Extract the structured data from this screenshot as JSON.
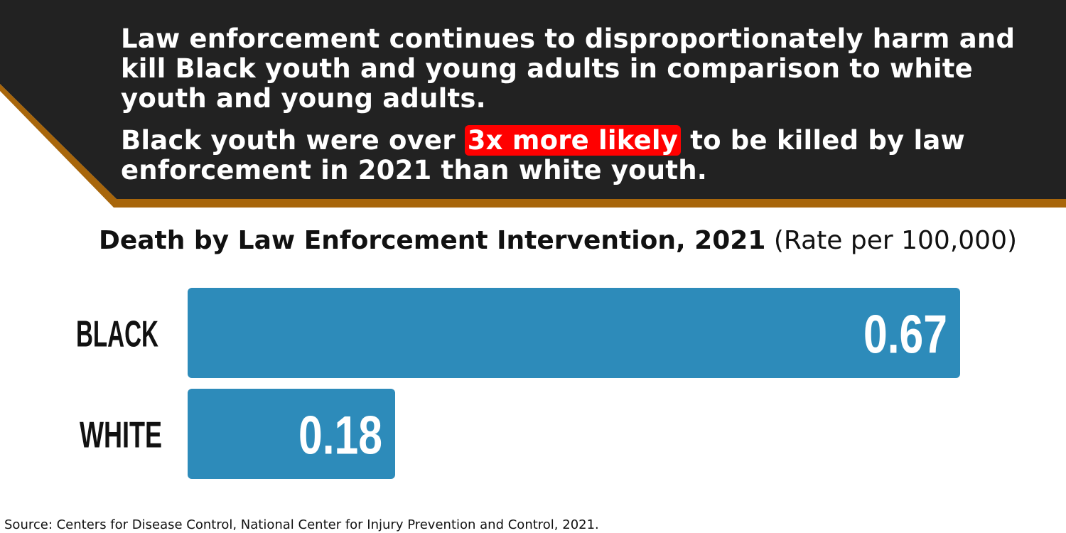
{
  "colors": {
    "banner_bg": "#222222",
    "banner_accent": "#a8660b",
    "bar": "#2d8bba",
    "highlight": "#ff0000"
  },
  "banner": {
    "paragraph1": "Law enforcement continues to disproportionately harm and kill Black youth and young adults in comparison to white youth and young adults.",
    "paragraph2_before": "Black youth were over ",
    "paragraph2_highlight": "3x more likely",
    "paragraph2_after": " to be killed by law enforcement in 2021 than white youth."
  },
  "chart_data": {
    "type": "bar",
    "orientation": "horizontal",
    "title": "Death by Law Enforcement Intervention, 2021",
    "subtitle": "(Rate per 100,000)",
    "categories": [
      "BLACK",
      "WHITE"
    ],
    "values": [
      0.67,
      0.18
    ],
    "value_labels": [
      "0.67",
      "0.18"
    ],
    "xlim": [
      0,
      0.67
    ],
    "grid": false,
    "legend": "none"
  },
  "source": "Source: Centers for Disease Control, National Center for Injury Prevention and Control, 2021."
}
